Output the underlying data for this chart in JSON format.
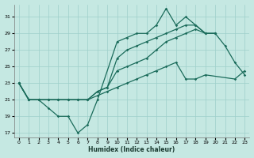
{
  "xlabel": "Humidex (Indice chaleur)",
  "bg_color": "#c5e8e2",
  "grid_color": "#9ecfca",
  "line_color": "#1a6b5a",
  "xlim": [
    -0.5,
    23.5
  ],
  "ylim": [
    16.5,
    32.5
  ],
  "xticks": [
    0,
    1,
    2,
    3,
    4,
    5,
    6,
    7,
    8,
    9,
    10,
    11,
    12,
    13,
    14,
    15,
    16,
    17,
    18,
    19,
    20,
    21,
    22,
    23
  ],
  "yticks": [
    17,
    19,
    21,
    23,
    25,
    27,
    29,
    31
  ],
  "line1_x": [
    0,
    1,
    2,
    3,
    4,
    5,
    6,
    7,
    8,
    10,
    11,
    12,
    13,
    14,
    15,
    16,
    17,
    18,
    19,
    20,
    21,
    22,
    23
  ],
  "line1_y": [
    23,
    21,
    21,
    20,
    19,
    19,
    17,
    18,
    21,
    28,
    28.5,
    29,
    29,
    30,
    32,
    30,
    31,
    30,
    29,
    29,
    27.5,
    25.5,
    24
  ],
  "line2_x": [
    0,
    1,
    2,
    3,
    4,
    5,
    6,
    7,
    8,
    9,
    10,
    11,
    12,
    13,
    14,
    15,
    16,
    17,
    18,
    19,
    20
  ],
  "line2_y": [
    23,
    21,
    21,
    21,
    21,
    21,
    21,
    21,
    22,
    22.5,
    26,
    27,
    27.5,
    28,
    28.5,
    29,
    29.5,
    30,
    30,
    29,
    29
  ],
  "line3_x": [
    0,
    1,
    2,
    3,
    4,
    5,
    6,
    7,
    8,
    9,
    10,
    11,
    12,
    13,
    14,
    15,
    16,
    17,
    18,
    19,
    20
  ],
  "line3_y": [
    23,
    21,
    21,
    21,
    21,
    21,
    21,
    21,
    22,
    22.5,
    24.5,
    25,
    25.5,
    26,
    27,
    28,
    28.5,
    29,
    29.5,
    29,
    29
  ],
  "line4_x": [
    0,
    1,
    2,
    3,
    4,
    5,
    6,
    7,
    8,
    9,
    10,
    11,
    12,
    13,
    14,
    15,
    16,
    17,
    18,
    19,
    22,
    23
  ],
  "line4_y": [
    23,
    21,
    21,
    21,
    21,
    21,
    21,
    21,
    21.5,
    22,
    22.5,
    23,
    23.5,
    24,
    24.5,
    25,
    25.5,
    23.5,
    23.5,
    24,
    23.5,
    24.5
  ]
}
